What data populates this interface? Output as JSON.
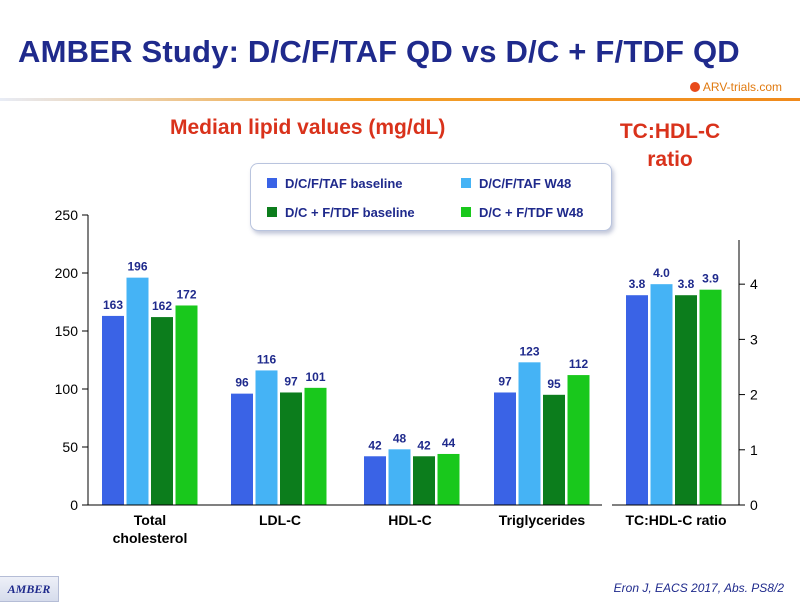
{
  "header": {
    "title": "AMBER Study: D/C/F/TAF QD vs D/C + F/TDF QD",
    "logo_text": "ARV-trials.com"
  },
  "footer": {
    "left_badge": "AMBER",
    "citation": "Eron J, EACS 2017, Abs. PS8/2"
  },
  "colors": {
    "title": "#1f2a8c",
    "subtitle": "#d9321b",
    "accent_line": "#f08a1c"
  },
  "chart_data": [
    {
      "type": "bar",
      "title": "Median lipid values (mg/dL)",
      "categories": [
        "Total cholesterol",
        "LDL-C",
        "HDL-C",
        "Triglycerides"
      ],
      "series": [
        {
          "name": "D/C/F/TAF baseline",
          "color": "#3a63e6",
          "values": [
            163,
            96,
            42,
            97
          ]
        },
        {
          "name": "D/C/F/TAF W48",
          "color": "#45b3f5",
          "values": [
            196,
            116,
            48,
            123
          ]
        },
        {
          "name": "D/C + F/TDF baseline",
          "color": "#0c7d1c",
          "values": [
            162,
            97,
            42,
            95
          ]
        },
        {
          "name": "D/C + F/TDF W48",
          "color": "#19c81c",
          "values": [
            172,
            101,
            44,
            112
          ]
        }
      ],
      "ylim": [
        0,
        250
      ],
      "yticks": [
        0,
        50,
        100,
        150,
        200,
        250
      ],
      "legend": "top-center"
    },
    {
      "type": "bar",
      "title": "TC:HDL-C ratio",
      "categories": [
        "TC:HDL-C ratio"
      ],
      "series": [
        {
          "name": "D/C/F/TAF baseline",
          "color": "#3a63e6",
          "values": [
            3.8
          ]
        },
        {
          "name": "D/C/F/TAF W48",
          "color": "#45b3f5",
          "values": [
            4.0
          ]
        },
        {
          "name": "D/C + F/TDF baseline",
          "color": "#0c7d1c",
          "values": [
            3.8
          ]
        },
        {
          "name": "D/C + F/TDF W48",
          "color": "#19c81c",
          "values": [
            3.9
          ]
        }
      ],
      "ylim": [
        0,
        4.8
      ],
      "yticks": [
        0,
        1,
        2,
        3,
        4
      ],
      "axis_side": "right"
    }
  ]
}
